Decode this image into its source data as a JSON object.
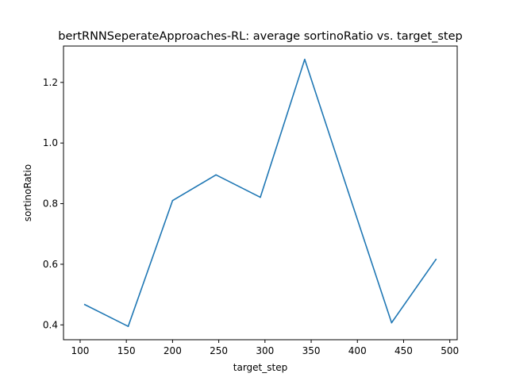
{
  "chart_data": {
    "type": "line",
    "title": "bertRNNSeperateApproaches-RL: average sortinoRatio vs. target_step",
    "xlabel": "target_step",
    "ylabel": "sortinoRatio",
    "x": [
      105,
      152,
      200,
      247,
      295,
      343,
      390,
      437,
      485
    ],
    "series": [
      {
        "values": [
          0.467,
          0.395,
          0.81,
          0.895,
          0.821,
          1.276,
          0.84,
          0.407,
          0.616
        ],
        "color": "#1f77b4"
      }
    ],
    "xticks": [
      100,
      150,
      200,
      250,
      300,
      350,
      400,
      450,
      500
    ],
    "yticks": [
      0.4,
      0.6,
      0.8,
      1.0,
      1.2
    ],
    "xlim": [
      82,
      508
    ],
    "ylim": [
      0.351,
      1.32
    ],
    "grid": false,
    "legend": "none"
  }
}
